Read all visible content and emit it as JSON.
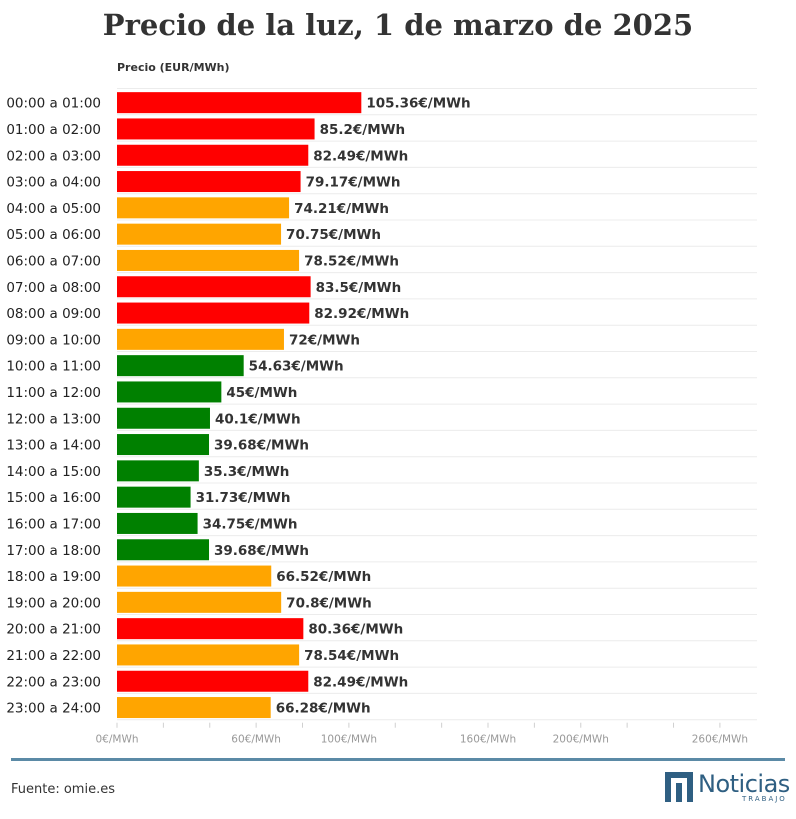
{
  "chart_data": {
    "type": "bar",
    "orientation": "horizontal",
    "title": "Precio de la luz, 1 de marzo de 2025",
    "ylabel": "Precio (EUR/MWh)",
    "categories": [
      "00:00 a 01:00",
      "01:00 a 02:00",
      "02:00 a 03:00",
      "03:00 a 04:00",
      "04:00 a 05:00",
      "05:00 a 06:00",
      "06:00 a 07:00",
      "07:00 a 08:00",
      "08:00 a 09:00",
      "09:00 a 10:00",
      "10:00 a 11:00",
      "11:00 a 12:00",
      "12:00 a 13:00",
      "13:00 a 14:00",
      "14:00 a 15:00",
      "15:00 a 16:00",
      "16:00 a 17:00",
      "17:00 a 18:00",
      "18:00 a 19:00",
      "19:00 a 20:00",
      "20:00 a 21:00",
      "21:00 a 22:00",
      "22:00 a 23:00",
      "23:00 a 24:00"
    ],
    "values": [
      105.36,
      85.2,
      82.49,
      79.17,
      74.21,
      70.75,
      78.52,
      83.5,
      82.92,
      72,
      54.63,
      45,
      40.1,
      39.68,
      35.3,
      31.73,
      34.75,
      39.68,
      66.52,
      70.8,
      80.36,
      78.54,
      82.49,
      66.28
    ],
    "value_labels": [
      "105.36€/MWh",
      "85.2€/MWh",
      "82.49€/MWh",
      "79.17€/MWh",
      "74.21€/MWh",
      "70.75€/MWh",
      "78.52€/MWh",
      "83.5€/MWh",
      "82.92€/MWh",
      "72€/MWh",
      "54.63€/MWh",
      "45€/MWh",
      "40.1€/MWh",
      "39.68€/MWh",
      "35.3€/MWh",
      "31.73€/MWh",
      "34.75€/MWh",
      "39.68€/MWh",
      "66.52€/MWh",
      "70.8€/MWh",
      "80.36€/MWh",
      "78.54€/MWh",
      "82.49€/MWh",
      "66.28€/MWh"
    ],
    "levels": [
      "high",
      "high",
      "high",
      "high",
      "mid",
      "mid",
      "mid",
      "high",
      "high",
      "mid",
      "low",
      "low",
      "low",
      "low",
      "low",
      "low",
      "low",
      "low",
      "mid",
      "mid",
      "high",
      "mid",
      "high",
      "mid"
    ],
    "level_colors": {
      "high": "#ff0000",
      "mid": "#ffa500",
      "low": "#008000"
    },
    "xticks": [
      {
        "value": 0,
        "label": "0€/MWh"
      },
      {
        "value": 60,
        "label": "60€/MWh"
      },
      {
        "value": 100,
        "label": "100€/MWh"
      },
      {
        "value": 160,
        "label": "160€/MWh"
      },
      {
        "value": 200,
        "label": "200€/MWh"
      },
      {
        "value": 260,
        "label": "260€/MWh"
      }
    ],
    "xlim": [
      0,
      276
    ],
    "grid": true
  },
  "footer": {
    "source": "Fuente: omie.es",
    "brand": "Noticias",
    "brand_sub": "TRABAJO",
    "brand_color": "#2f5f82"
  }
}
